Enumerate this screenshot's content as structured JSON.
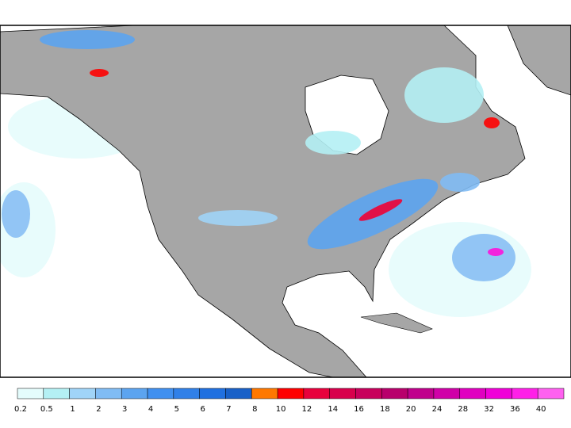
{
  "legend": {
    "values": [
      0.2,
      0.5,
      1,
      2,
      3,
      4,
      5,
      6,
      7,
      8,
      10,
      12,
      14,
      16,
      18,
      20,
      24,
      28,
      32,
      36,
      40
    ],
    "colors": [
      "#e4fcfc",
      "#b4f0f4",
      "#a0d4f8",
      "#80bcf4",
      "#5ca4f0",
      "#4090f0",
      "#3080e8",
      "#2070e0",
      "#1860c8",
      "#ff7800",
      "#ff0000",
      "#e8003c",
      "#d8004c",
      "#c8005c",
      "#b8006c",
      "#c0008c",
      "#d000a8",
      "#e000c0",
      "#f000d8",
      "#ff20e8",
      "#ff60f0"
    ]
  }
}
